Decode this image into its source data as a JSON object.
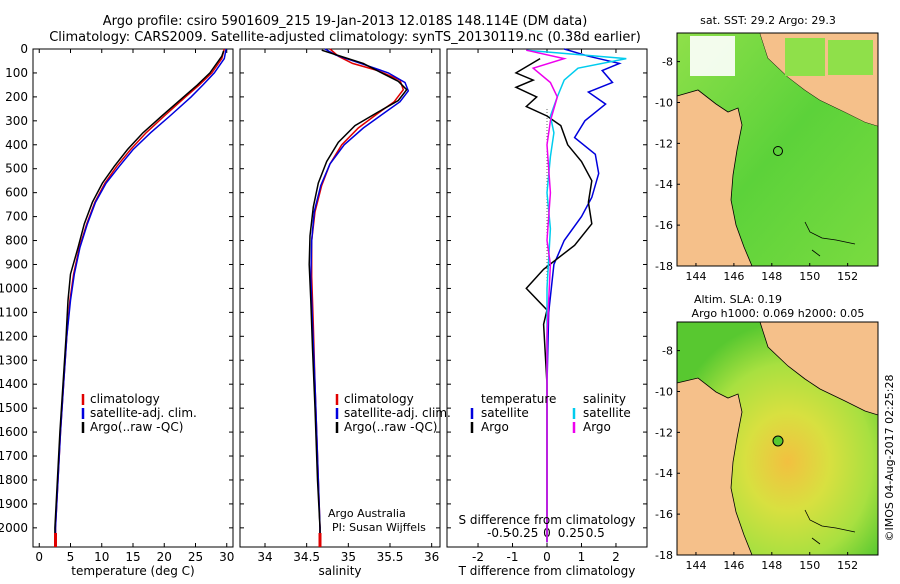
{
  "header": {
    "line1": "Argo profile: csiro 5901609_215 19-Jan-2013 12.018S 148.114E (DM data)",
    "line2": "Climatology: CARS2009. Satellite-adjusted climatology: synTS_20130119.nc (0.38d earlier)"
  },
  "colors": {
    "climatology": "#e00000",
    "satellite": "#0000dd",
    "argo": "#000000",
    "sat_salinity": "#00ccee",
    "argo_salinity": "#ee00ee",
    "land": "#f5c08a"
  },
  "chart_data": [
    {
      "type": "line",
      "id": "temperature",
      "xlabel": "temperature (deg C)",
      "ylabel": "depth",
      "xlim": [
        -1,
        31
      ],
      "ylim": [
        2080,
        0
      ],
      "xticks": [
        0,
        5,
        10,
        15,
        20,
        25,
        30
      ],
      "yticks": [
        0,
        100,
        200,
        300,
        400,
        500,
        600,
        700,
        800,
        900,
        1000,
        1100,
        1200,
        1300,
        1400,
        1500,
        1600,
        1700,
        1800,
        1900,
        2000
      ],
      "legend": {
        "position": "bottom-left",
        "entries": [
          "climatology",
          "satellite-adj. clim.",
          "Argo(..raw -QC)"
        ]
      },
      "series": [
        {
          "name": "climatology",
          "color": "#e00000",
          "points": [
            [
              29.6,
              0
            ],
            [
              29.2,
              40
            ],
            [
              27.6,
              100
            ],
            [
              25.6,
              150
            ],
            [
              23.4,
              200
            ],
            [
              20.0,
              280
            ],
            [
              17.1,
              350
            ],
            [
              14.6,
              420
            ],
            [
              12.4,
              490
            ],
            [
              10.5,
              560
            ],
            [
              8.9,
              640
            ],
            [
              7.6,
              730
            ],
            [
              6.4,
              830
            ],
            [
              5.5,
              940
            ],
            [
              4.9,
              1050
            ],
            [
              4.4,
              1200
            ],
            [
              3.9,
              1400
            ],
            [
              3.4,
              1600
            ],
            [
              3.0,
              1800
            ],
            [
              2.6,
              2000
            ],
            [
              2.6,
              2070
            ]
          ]
        },
        {
          "name": "satellite-adj. clim.",
          "color": "#0000dd",
          "points": [
            [
              29.9,
              0
            ],
            [
              29.6,
              40
            ],
            [
              28.0,
              100
            ],
            [
              26.2,
              150
            ],
            [
              24.3,
              200
            ],
            [
              20.9,
              280
            ],
            [
              17.8,
              350
            ],
            [
              15.0,
              420
            ],
            [
              12.8,
              490
            ],
            [
              10.7,
              560
            ],
            [
              9.0,
              640
            ],
            [
              7.7,
              730
            ],
            [
              6.5,
              830
            ],
            [
              5.6,
              940
            ],
            [
              5.0,
              1050
            ],
            [
              4.4,
              1200
            ],
            [
              3.9,
              1400
            ],
            [
              3.4,
              1600
            ],
            [
              3.0,
              1800
            ],
            [
              2.6,
              2000
            ],
            [
              2.6,
              2070
            ]
          ]
        },
        {
          "name": "Argo(..raw -QC)",
          "color": "#000000",
          "points": [
            [
              29.5,
              8
            ],
            [
              29.2,
              30
            ],
            [
              27.3,
              100
            ],
            [
              25.3,
              150
            ],
            [
              23.1,
              200
            ],
            [
              19.6,
              280
            ],
            [
              16.6,
              350
            ],
            [
              14.1,
              420
            ],
            [
              12.0,
              490
            ],
            [
              10.1,
              560
            ],
            [
              8.5,
              640
            ],
            [
              7.2,
              730
            ],
            [
              6.2,
              830
            ],
            [
              5.0,
              940
            ],
            [
              4.6,
              1050
            ],
            [
              4.3,
              1200
            ],
            [
              3.8,
              1400
            ],
            [
              3.3,
              1600
            ],
            [
              2.9,
              1800
            ],
            [
              2.5,
              2000
            ],
            [
              2.5,
              2060
            ]
          ]
        }
      ]
    },
    {
      "type": "line",
      "id": "salinity",
      "xlabel": "salinity",
      "xlim": [
        33.7,
        36.1
      ],
      "ylim": [
        2080,
        0
      ],
      "xticks": [
        34,
        34.5,
        35,
        35.5,
        36
      ],
      "xticklabels": [
        "34",
        "34.5",
        "35",
        "35.5",
        "36"
      ],
      "legend": {
        "position": "bottom-right",
        "entries": [
          "climatology",
          "satellite-adj. clim.",
          "Argo(..raw -QC)"
        ]
      },
      "annotation": [
        "Argo Australia",
        "PI: Susan Wijffels"
      ],
      "series": [
        {
          "name": "climatology",
          "color": "#e00000",
          "points": [
            [
              34.78,
              0
            ],
            [
              34.88,
              30
            ],
            [
              35.05,
              60
            ],
            [
              35.35,
              90
            ],
            [
              35.62,
              130
            ],
            [
              35.66,
              170
            ],
            [
              35.55,
              220
            ],
            [
              35.35,
              270
            ],
            [
              35.12,
              330
            ],
            [
              34.92,
              400
            ],
            [
              34.78,
              480
            ],
            [
              34.68,
              570
            ],
            [
              34.6,
              680
            ],
            [
              34.56,
              800
            ],
            [
              34.56,
              950
            ],
            [
              34.58,
              1150
            ],
            [
              34.6,
              1400
            ],
            [
              34.63,
              1700
            ],
            [
              34.66,
              2000
            ],
            [
              34.66,
              2070
            ]
          ]
        },
        {
          "name": "satellite-adj. clim.",
          "color": "#0000dd",
          "points": [
            [
              34.72,
              0
            ],
            [
              34.85,
              25
            ],
            [
              35.15,
              60
            ],
            [
              35.48,
              100
            ],
            [
              35.68,
              140
            ],
            [
              35.72,
              175
            ],
            [
              35.62,
              220
            ],
            [
              35.42,
              270
            ],
            [
              35.18,
              330
            ],
            [
              34.95,
              400
            ],
            [
              34.78,
              480
            ],
            [
              34.67,
              570
            ],
            [
              34.59,
              680
            ],
            [
              34.56,
              800
            ],
            [
              34.55,
              950
            ],
            [
              34.57,
              1150
            ],
            [
              34.6,
              1400
            ],
            [
              34.63,
              1700
            ],
            [
              34.66,
              2000
            ],
            [
              34.66,
              2070
            ]
          ]
        },
        {
          "name": "Argo(..raw -QC)",
          "color": "#000000",
          "points": [
            [
              34.68,
              5
            ],
            [
              34.95,
              35
            ],
            [
              35.18,
              60
            ],
            [
              35.4,
              100
            ],
            [
              35.6,
              135
            ],
            [
              35.7,
              170
            ],
            [
              35.6,
              215
            ],
            [
              35.35,
              265
            ],
            [
              35.08,
              320
            ],
            [
              34.88,
              390
            ],
            [
              34.74,
              470
            ],
            [
              34.64,
              560
            ],
            [
              34.58,
              660
            ],
            [
              34.54,
              780
            ],
            [
              34.53,
              900
            ],
            [
              34.55,
              1050
            ],
            [
              34.57,
              1250
            ],
            [
              34.6,
              1500
            ],
            [
              34.63,
              1800
            ],
            [
              34.66,
              2000
            ],
            [
              34.66,
              2060
            ]
          ]
        }
      ]
    },
    {
      "type": "line",
      "id": "difference",
      "xlabel": "T difference from climatology",
      "xlabel_top": "S difference from climatology",
      "xlim": [
        -2.9,
        2.9
      ],
      "ylim": [
        2080,
        0
      ],
      "xticks": [
        -2,
        -1,
        0,
        1,
        2
      ],
      "xticks_top": [
        "-0.5",
        "-0.25",
        "0",
        "0.25",
        "0.5"
      ],
      "legend": {
        "position": "middle",
        "groups": [
          {
            "title": "temperature",
            "entries": [
              "satellite",
              "Argo"
            ]
          },
          {
            "title": "salinity",
            "entries": [
              "satellite",
              "Argo"
            ]
          }
        ]
      },
      "series": [
        {
          "name": "temperature satellite",
          "color": "#0000dd",
          "points": [
            [
              0.5,
              0
            ],
            [
              1.2,
              30
            ],
            [
              2.1,
              60
            ],
            [
              1.6,
              90
            ],
            [
              1.9,
              140
            ],
            [
              1.2,
              180
            ],
            [
              1.7,
              230
            ],
            [
              1.1,
              300
            ],
            [
              0.8,
              370
            ],
            [
              1.4,
              440
            ],
            [
              1.5,
              520
            ],
            [
              1.3,
              620
            ],
            [
              1.0,
              700
            ],
            [
              0.5,
              800
            ],
            [
              0.2,
              900
            ],
            [
              0.05,
              1100
            ],
            [
              0.0,
              1400
            ],
            [
              0.0,
              2060
            ]
          ]
        },
        {
          "name": "temperature Argo",
          "color": "#000000",
          "points": [
            [
              -0.2,
              40
            ],
            [
              -0.9,
              100
            ],
            [
              -0.4,
              130
            ],
            [
              -0.9,
              160
            ],
            [
              -0.3,
              200
            ],
            [
              -0.6,
              240
            ],
            [
              0.0,
              280
            ],
            [
              0.4,
              320
            ],
            [
              0.6,
              400
            ],
            [
              1.0,
              470
            ],
            [
              1.3,
              550
            ],
            [
              1.2,
              640
            ],
            [
              1.3,
              730
            ],
            [
              0.8,
              820
            ],
            [
              -0.1,
              920
            ],
            [
              -0.6,
              1000
            ],
            [
              0.0,
              1090
            ],
            [
              -0.1,
              1150
            ],
            [
              0.0,
              1400
            ],
            [
              0.0,
              2060
            ]
          ]
        },
        {
          "name": "salinity satellite",
          "color": "#00ccee",
          "points": [
            [
              -0.6,
              5
            ],
            [
              2.3,
              40
            ],
            [
              0.9,
              80
            ],
            [
              0.5,
              130
            ],
            [
              0.3,
              200
            ],
            [
              0.1,
              280
            ],
            [
              0.2,
              350
            ],
            [
              0.1,
              450
            ],
            [
              0.0,
              600
            ],
            [
              0.1,
              750
            ],
            [
              0.0,
              1000
            ],
            [
              0.0,
              2060
            ]
          ]
        },
        {
          "name": "salinity Argo",
          "color": "#ee00ee",
          "points": [
            [
              -0.6,
              5
            ],
            [
              0.5,
              40
            ],
            [
              -0.4,
              80
            ],
            [
              0.1,
              140
            ],
            [
              0.3,
              200
            ],
            [
              0.1,
              300
            ],
            [
              0.0,
              400
            ],
            [
              0.1,
              600
            ],
            [
              0.0,
              800
            ],
            [
              0.1,
              900
            ],
            [
              0.0,
              1200
            ],
            [
              0.0,
              2060
            ]
          ]
        }
      ]
    }
  ],
  "maps": [
    {
      "title": "sat. SST: 29.2  Argo: 29.3",
      "xticks": [
        "144",
        "146",
        "148",
        "150",
        "152"
      ],
      "yticks": [
        "-8",
        "-10",
        "-12",
        "-14",
        "-16",
        "-18"
      ],
      "point": {
        "lon": 148.114,
        "lat": -12.018
      }
    },
    {
      "title_line1": "Altim. SLA: 0.19",
      "title_line2": "Argo h1000: 0.069 h2000: 0.05",
      "xticks": [
        "144",
        "146",
        "148",
        "150",
        "152"
      ],
      "yticks": [
        "-8",
        "-10",
        "-12",
        "-14",
        "-16",
        "-18"
      ],
      "point": {
        "lon": 148.114,
        "lat": -12.018
      }
    }
  ],
  "footer": {
    "stamp": "©IMOS 04-Aug-2017 02:25:28"
  }
}
